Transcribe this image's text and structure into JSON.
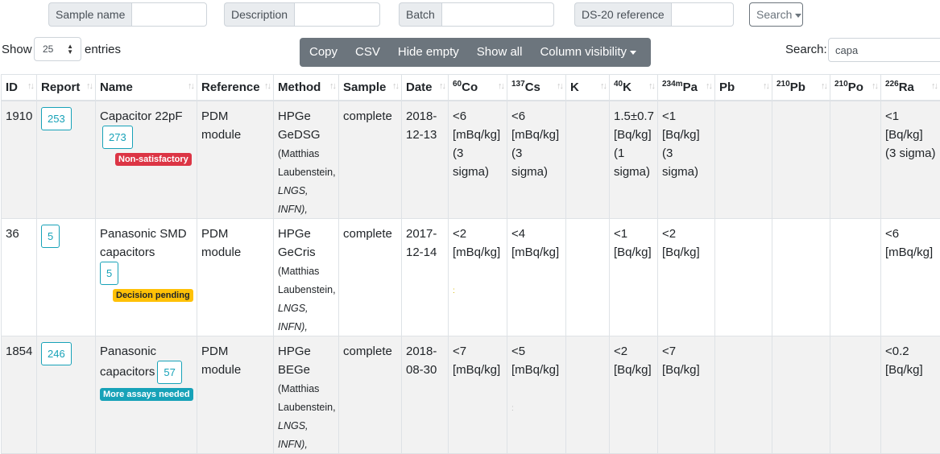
{
  "filters": {
    "sample_name_label": "Sample name",
    "description_label": "Description",
    "batch_label": "Batch",
    "ds20_label": "DS-20 reference",
    "search_button": "Search"
  },
  "controls": {
    "show_label": "Show",
    "page_size": "25",
    "entries_label": "entries",
    "buttons": [
      "Copy",
      "CSV",
      "Hide empty",
      "Show all",
      "Column visibility"
    ],
    "search_label": "Search:",
    "search_value": "capa"
  },
  "table": {
    "headers": {
      "id": "ID",
      "report": "Report",
      "name": "Name",
      "reference": "Reference",
      "method": "Method",
      "sample": "Sample",
      "date": "Date",
      "co": "Co",
      "co_sup": "60",
      "cs": "Cs",
      "cs_sup": "137",
      "k": "K",
      "k40": "K",
      "k40_sup": "40",
      "pa": "Pa",
      "pa_sup": "234m",
      "pb": "Pb",
      "pb210": "Pb",
      "pb210_sup": "210",
      "po": "Po",
      "po_sup": "210",
      "ra": "Ra",
      "ra_sup": "226"
    },
    "rows": [
      {
        "id": "1910",
        "report": "253",
        "name": "Capacitor 22pF",
        "name_badge": "273",
        "status": "Non-satisfactory",
        "reference": "PDM module",
        "method": "HPGe GeDSG",
        "method_detail": "(Matthias Laubenstein,",
        "method_lab": "LNGS, INFN),",
        "sample": "complete",
        "date": "2018-12-13",
        "co": "<6 [mBq/kg] (3 sigma)",
        "cs": "<6 [mBq/kg] (3 sigma)",
        "k": "",
        "k40": "1.5±0.7 [Bq/kg] (1 sigma)",
        "pa": "<1 [Bq/kg] (3 sigma)",
        "pb": "",
        "pb210": "",
        "po": "",
        "ra": "<1 [Bq/kg] (3 sigma)"
      },
      {
        "id": "36",
        "report": "5",
        "name": "Panasonic SMD capacitors",
        "name_badge": "5",
        "status": "Decision pending",
        "reference": "PDM module",
        "method": "HPGe GeCris",
        "method_detail": "(Matthias Laubenstein,",
        "method_lab": "LNGS, INFN),",
        "sample": "complete",
        "date": "2017-12-14",
        "co": "<2 [mBq/kg]",
        "cs": "<4 [mBq/kg]",
        "k": "",
        "k40": "<1 [Bq/kg]",
        "pa": "<2 [Bq/kg]",
        "pb": "",
        "pb210": "",
        "po": "",
        "ra": "<6 [mBq/kg]"
      },
      {
        "id": "1854",
        "report": "246",
        "name": "Panasonic capacitors",
        "name_badge": "57",
        "status": "More assays needed",
        "reference": "PDM module",
        "method": "HPGe BEGe",
        "method_detail": "(Matthias Laubenstein,",
        "method_lab": "LNGS, INFN),",
        "sample": "complete",
        "date": "2018-08-30",
        "co": "<7 [mBq/kg]",
        "cs": "<5 [mBq/kg]",
        "k": "",
        "k40": "<2 [Bq/kg]",
        "pa": "<7 [Bq/kg]",
        "pb": "",
        "pb210": "",
        "po": "",
        "ra": "<0.2 [Bq/kg]"
      }
    ]
  },
  "colors": {
    "info": "#17a2b8",
    "danger": "#dc3545",
    "warning": "#ffc107",
    "secondary": "#6c757d",
    "stripe": "#f2f2f2"
  }
}
